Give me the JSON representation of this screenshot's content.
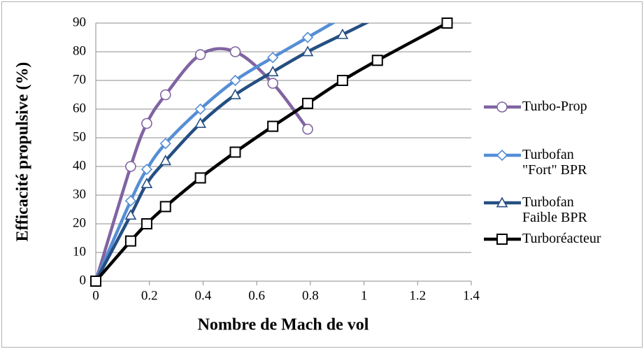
{
  "chart_data": {
    "type": "line",
    "xlabel": "Nombre de Mach de vol",
    "ylabel": "Efficacité propulsive (%)",
    "xlim": [
      0,
      1.4
    ],
    "xticks": [
      0,
      0.2,
      0.4,
      0.6,
      0.8,
      1,
      1.2,
      1.4
    ],
    "ylim": [
      0,
      90
    ],
    "yticks": [
      0,
      10,
      20,
      30,
      40,
      50,
      60,
      70,
      80,
      90
    ],
    "grid": true,
    "smooth": true,
    "legend": "right",
    "series": [
      {
        "name": "Turbo-Prop",
        "color": "#8064a2",
        "marker": "circle",
        "x": [
          0,
          0.13,
          0.19,
          0.26,
          0.39,
          0.52,
          0.66,
          0.79
        ],
        "values": [
          0,
          40,
          55,
          65,
          79,
          80,
          69,
          53
        ]
      },
      {
        "name": "Turbofan \"Fort\" BPR",
        "color": "#558ed5",
        "marker": "diamond",
        "x": [
          0,
          0.13,
          0.19,
          0.26,
          0.39,
          0.52,
          0.66,
          0.79,
          0.92
        ],
        "values": [
          0,
          28,
          39,
          48,
          60,
          70,
          78,
          85,
          92
        ]
      },
      {
        "name": "Turbofan Faible BPR",
        "color": "#254f82",
        "marker": "triangle",
        "x": [
          0,
          0.13,
          0.19,
          0.26,
          0.39,
          0.52,
          0.66,
          0.79,
          0.92,
          1.05
        ],
        "values": [
          0,
          23,
          34,
          42,
          55,
          65,
          73,
          80,
          86,
          92
        ]
      },
      {
        "name": "Turboréacteur",
        "color": "#000000",
        "marker": "square",
        "x": [
          0,
          0.13,
          0.19,
          0.26,
          0.39,
          0.52,
          0.66,
          0.79,
          0.92,
          1.05,
          1.31
        ],
        "values": [
          0,
          14,
          20,
          26,
          36,
          45,
          54,
          62,
          70,
          77,
          90
        ]
      }
    ]
  }
}
